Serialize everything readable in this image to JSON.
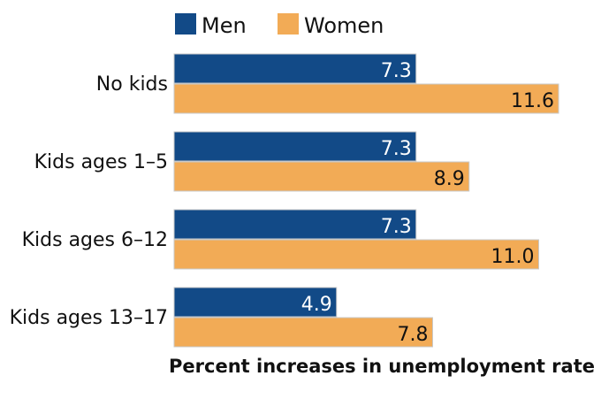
{
  "chart_data": {
    "type": "bar",
    "orientation": "horizontal",
    "categories": [
      "No kids",
      "Kids ages 1–5",
      "Kids ages 6–12",
      "Kids ages 13–17"
    ],
    "series": [
      {
        "name": "Men",
        "values": [
          7.3,
          7.3,
          7.3,
          4.9
        ],
        "color": "#124a87",
        "label_color": "#ffffff"
      },
      {
        "name": "Women",
        "values": [
          11.6,
          8.9,
          11.0,
          7.8
        ],
        "color": "#f2ab56",
        "label_color": "#111111"
      }
    ],
    "value_labels": [
      [
        "7.3",
        "7.3",
        "7.3",
        "4.9"
      ],
      [
        "11.6",
        "8.9",
        "11.0",
        "7.8"
      ]
    ],
    "xlabel": "Percent increases in unemployment rate",
    "legend_position": "top",
    "grid": false
  }
}
